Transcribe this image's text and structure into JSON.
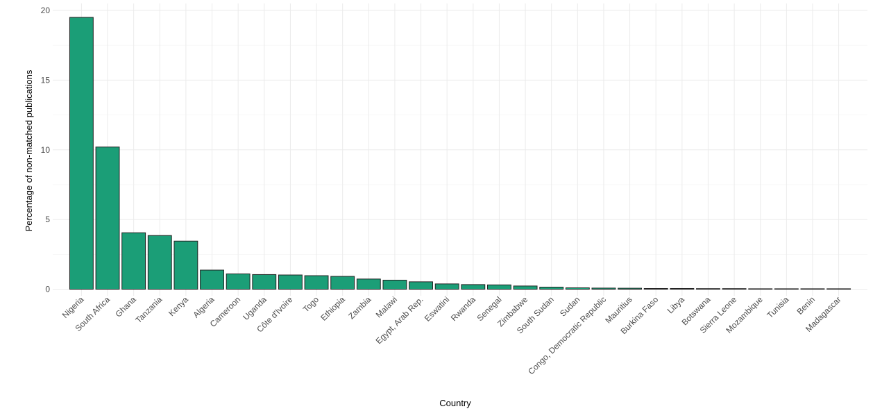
{
  "chart_data": {
    "type": "bar",
    "xlabel": "Country",
    "ylabel": "Percentage of non-matched publications",
    "ylim": [
      0,
      20
    ],
    "yticks": [
      0,
      5,
      10,
      15,
      20
    ],
    "grid": true,
    "bar_color": "#1b9e77",
    "bar_outline": "#222222",
    "categories": [
      "Nigeria",
      "South Africa",
      "Ghana",
      "Tanzania",
      "Kenya",
      "Algeria",
      "Cameroon",
      "Uganda",
      "Côte d'Ivoire",
      "Togo",
      "Ethiopia",
      "Zambia",
      "Malawi",
      "Egypt, Arab Rep.",
      "Eswatini",
      "Rwanda",
      "Senegal",
      "Zimbabwe",
      "South Sudan",
      "Sudan",
      "Congo, Democratic Republic",
      "Mauritius",
      "Burkina Faso",
      "Libya",
      "Botswana",
      "Sierra Leone",
      "Mozambique",
      "Tunisia",
      "Benin",
      "Madagascar"
    ],
    "values": [
      19.5,
      10.2,
      4.05,
      3.85,
      3.45,
      1.37,
      1.1,
      1.05,
      1.02,
      0.97,
      0.92,
      0.73,
      0.65,
      0.53,
      0.38,
      0.33,
      0.31,
      0.23,
      0.15,
      0.1,
      0.08,
      0.07,
      0.05,
      0.05,
      0.04,
      0.04,
      0.03,
      0.03,
      0.03,
      0.03
    ]
  }
}
